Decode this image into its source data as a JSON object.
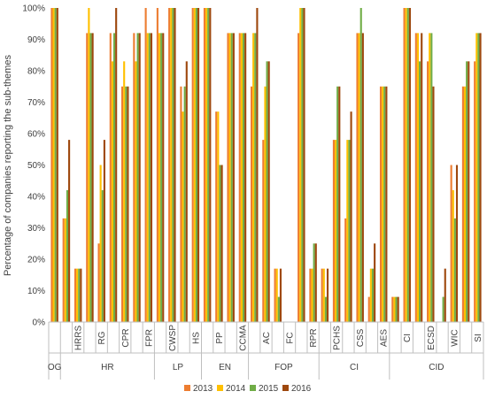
{
  "chart_data": {
    "type": "bar",
    "ylabel": "Percentage of companies reporting the sub-themes",
    "ylim": [
      0,
      100
    ],
    "yticks": [
      "0%",
      "10%",
      "20%",
      "30%",
      "40%",
      "50%",
      "60%",
      "70%",
      "80%",
      "90%",
      "100%"
    ],
    "grid": false,
    "legend_position": "bottom",
    "colors": [
      "#ED7D31",
      "#FFC000",
      "#70AD47",
      "#9E480E"
    ],
    "series_names": [
      "2013",
      "2014",
      "2015",
      "2016"
    ],
    "categories": [
      "OG",
      "",
      "HRRS",
      "",
      "RG",
      "",
      "CPR",
      "",
      "FPR",
      "",
      "CWSP",
      "",
      "HS",
      "",
      "PP",
      "",
      "CCMA",
      "",
      "AC",
      "",
      "FC",
      "",
      "RPR",
      "",
      "PCHS",
      "",
      "CSS",
      "",
      "AES",
      "",
      "CI",
      "",
      "ECSD",
      "",
      "WIC",
      "",
      "SI"
    ],
    "values": [
      [
        100,
        100,
        100,
        100
      ],
      [
        33,
        33,
        42,
        58
      ],
      [
        17,
        17,
        17,
        17
      ],
      [
        92,
        100,
        92,
        92
      ],
      [
        25,
        50,
        42,
        58
      ],
      [
        92,
        83,
        92,
        100
      ],
      [
        75,
        83,
        75,
        75
      ],
      [
        92,
        83,
        92,
        92
      ],
      [
        100,
        92,
        92,
        92
      ],
      [
        100,
        92,
        92,
        92
      ],
      [
        100,
        100,
        100,
        100
      ],
      [
        75,
        67,
        75,
        83
      ],
      [
        100,
        100,
        100,
        100
      ],
      [
        100,
        100,
        100,
        100
      ],
      [
        67,
        67,
        50,
        50
      ],
      [
        92,
        92,
        92,
        92
      ],
      [
        92,
        92,
        92,
        92
      ],
      [
        75,
        92,
        92,
        100
      ],
      [
        58,
        75,
        83,
        83
      ],
      [
        17,
        17,
        8,
        17
      ],
      [
        0,
        0,
        0,
        0
      ],
      [
        92,
        100,
        100,
        100
      ],
      [
        17,
        17,
        25,
        25
      ],
      [
        17,
        17,
        8,
        17
      ],
      [
        58,
        58,
        75,
        75
      ],
      [
        33,
        58,
        58,
        67
      ],
      [
        92,
        92,
        100,
        92
      ],
      [
        8,
        17,
        17,
        25
      ],
      [
        75,
        75,
        75,
        75
      ],
      [
        8,
        8,
        8,
        8
      ],
      [
        100,
        100,
        100,
        100
      ],
      [
        92,
        92,
        83,
        92
      ],
      [
        83,
        92,
        92,
        75
      ],
      [
        0,
        0,
        8,
        17
      ],
      [
        50,
        42,
        33,
        50
      ],
      [
        75,
        75,
        83,
        83
      ],
      [
        83,
        92,
        92,
        92
      ]
    ],
    "groups": [
      {
        "label": "OG",
        "start": 0,
        "end": 0
      },
      {
        "label": "HR",
        "start": 1,
        "end": 8
      },
      {
        "label": "LP",
        "start": 9,
        "end": 12
      },
      {
        "label": "EN",
        "start": 13,
        "end": 16
      },
      {
        "label": "FOP",
        "start": 17,
        "end": 22
      },
      {
        "label": "CI",
        "start": 23,
        "end": 28
      },
      {
        "label": "CID",
        "start": 29,
        "end": 36
      }
    ]
  }
}
